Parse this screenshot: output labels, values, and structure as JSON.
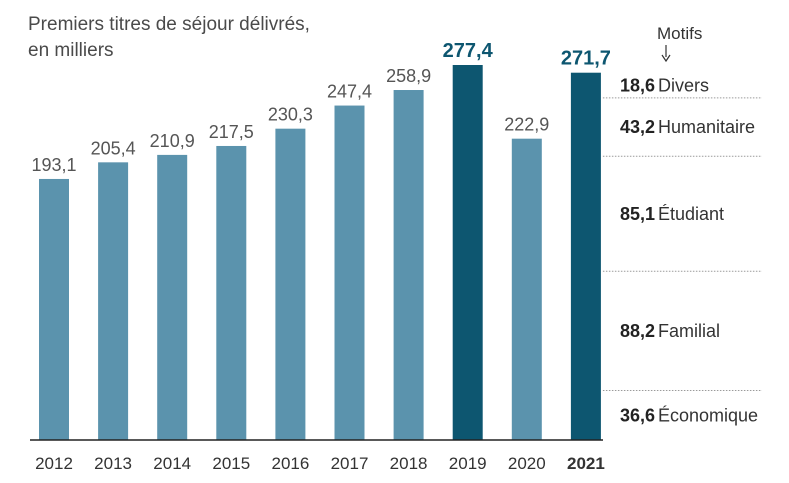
{
  "chart_data": {
    "type": "bar",
    "title_lines": [
      "Premiers titres de séjour délivrés,",
      "en milliers"
    ],
    "categories": [
      "2012",
      "2013",
      "2014",
      "2015",
      "2016",
      "2017",
      "2018",
      "2019",
      "2020",
      "2021"
    ],
    "values": [
      193.1,
      205.4,
      210.9,
      217.5,
      230.3,
      247.4,
      258.9,
      277.4,
      222.9,
      271.7
    ],
    "value_labels": [
      "193,1",
      "205,4",
      "210,9",
      "217,5",
      "230,3",
      "247,4",
      "258,9",
      "277,4",
      "222,9",
      "271,7"
    ],
    "highlighted_categories": [
      "2019",
      "2021"
    ],
    "ylim": [
      0,
      280
    ],
    "breakdown": {
      "year": "2021",
      "header": "Motifs",
      "segments": [
        {
          "name": "Économique",
          "value": 36.6,
          "label": "36,6"
        },
        {
          "name": "Familial",
          "value": 88.2,
          "label": "88,2"
        },
        {
          "name": "Étudiant",
          "value": 85.1,
          "label": "85,1"
        },
        {
          "name": "Humanitaire",
          "value": 43.2,
          "label": "43,2"
        },
        {
          "name": "Divers",
          "value": 18.6,
          "label": "18,6"
        }
      ]
    },
    "colors": {
      "bar": "#5b93ad",
      "highlight": "#0d5670",
      "value_text": "#555555",
      "highlight_text": "#0d5670",
      "axis": "#222222",
      "divider": "#9a9a9a"
    }
  }
}
